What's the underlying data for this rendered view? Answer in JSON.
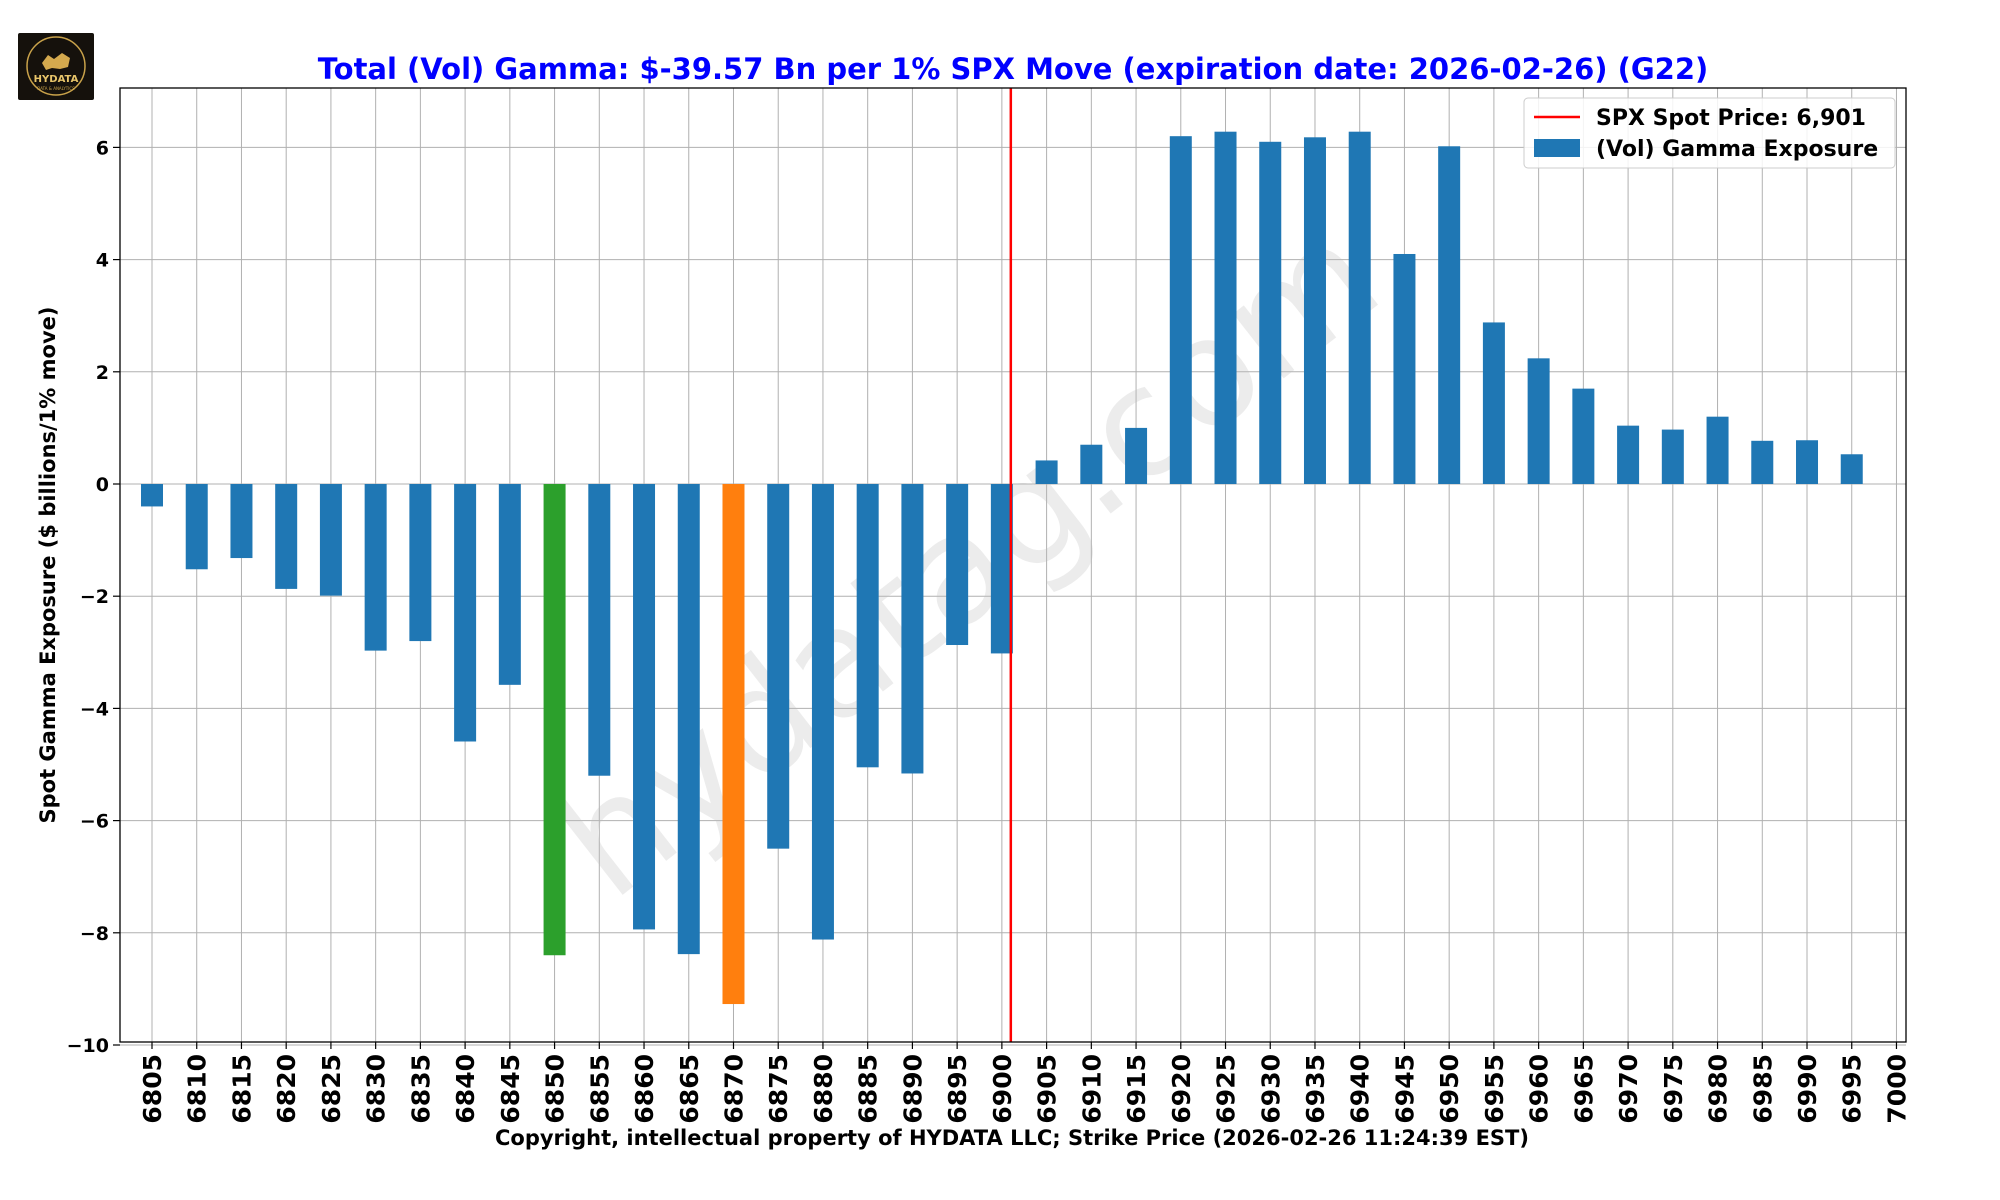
{
  "logo": {
    "text": "HYDATA",
    "subtitle": "DATA & ANALYTICS",
    "icon": "bull-icon"
  },
  "watermark": "hydatag.com",
  "chart_data": {
    "type": "bar",
    "title": "Total (Vol) Gamma: $-39.57 Bn per 1% SPX Move (expiration date: 2026-02-26) (G22)",
    "xlabel": "Copyright, intellectual property of HYDATA LLC; Strike Price (2026-02-26 11:24:39 EST)",
    "ylabel": "Spot Gamma Exposure ($ billions/1% move)",
    "ylim": [
      -10,
      7.1
    ],
    "yticks": [
      6,
      4,
      2,
      0,
      -2,
      -4,
      -6,
      -8,
      -10
    ],
    "ytick_labels": [
      "6",
      "4",
      "2",
      "0",
      "−2",
      "−4",
      "−6",
      "−8",
      "−10"
    ],
    "grid": true,
    "legend_position": "top-right",
    "categories": [
      "6805",
      "6810",
      "6815",
      "6820",
      "6825",
      "6830",
      "6835",
      "6840",
      "6845",
      "6850",
      "6855",
      "6860",
      "6865",
      "6870",
      "6875",
      "6880",
      "6885",
      "6890",
      "6895",
      "6900",
      "6905",
      "6910",
      "6915",
      "6920",
      "6925",
      "6930",
      "6935",
      "6940",
      "6945",
      "6950",
      "6955",
      "6960",
      "6965",
      "6970",
      "6975",
      "6980",
      "6985",
      "6990",
      "6995",
      "7000"
    ],
    "series": [
      {
        "name": "(Vol) Gamma Exposure",
        "color": "#1f77b4",
        "values": [
          -0.4,
          -1.52,
          -1.32,
          -1.87,
          -1.99,
          -2.97,
          -2.8,
          -4.59,
          -3.58,
          -8.4,
          -5.2,
          -7.94,
          -8.38,
          -9.27,
          -6.5,
          -8.12,
          -5.05,
          -5.16,
          -2.87,
          -3.02,
          0.42,
          0.7,
          1.0,
          6.2,
          6.28,
          6.1,
          6.18,
          6.28,
          4.1,
          6.02,
          2.88,
          2.24,
          1.7,
          1.04,
          0.97,
          1.2,
          0.77,
          0.78,
          0.53,
          null
        ]
      }
    ],
    "highlights": [
      {
        "category": "6850",
        "color": "#2ca02c"
      },
      {
        "category": "6870",
        "color": "#ff7f0e"
      }
    ],
    "spot_line": {
      "label": "SPX Spot Price: 6,901",
      "value": 6901,
      "color": "#ff0000"
    }
  }
}
